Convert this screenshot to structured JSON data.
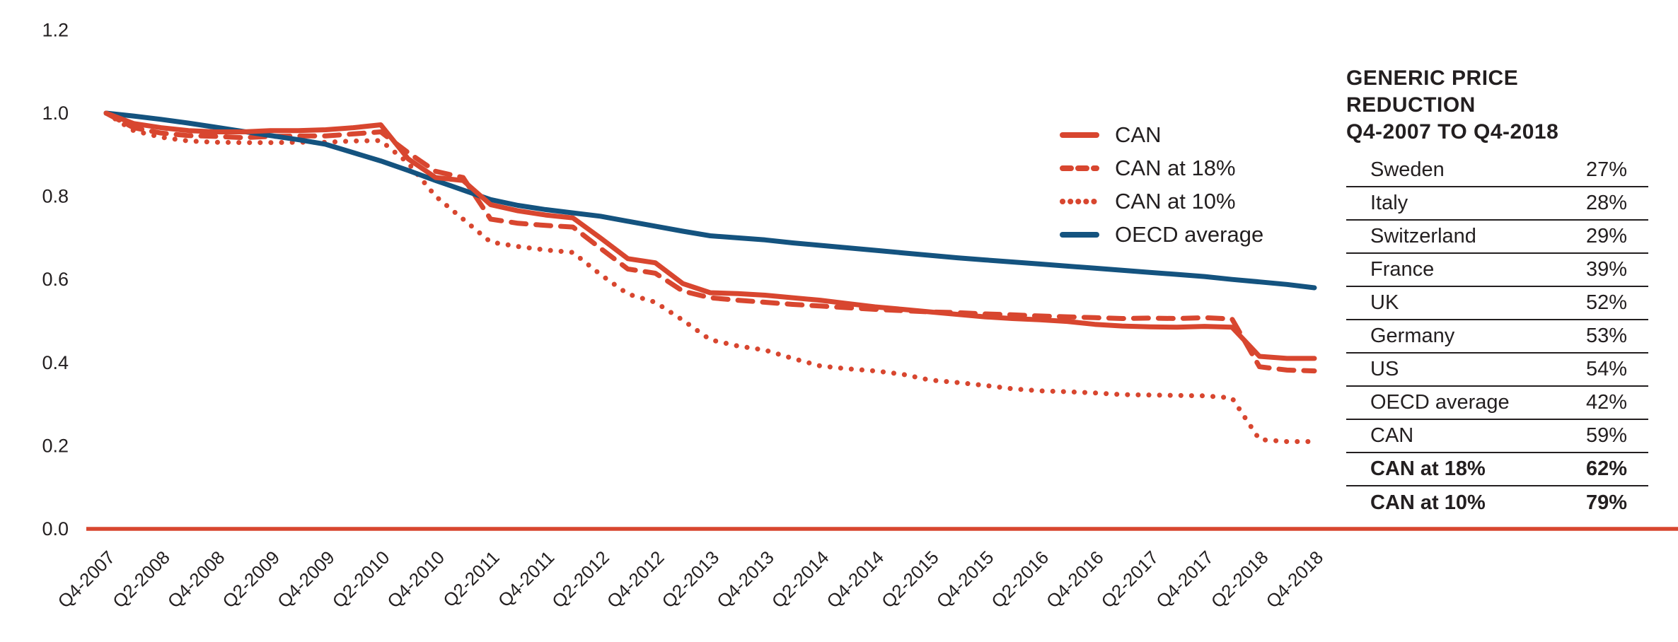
{
  "chart_data": {
    "type": "line",
    "title": "",
    "xlabel": "",
    "ylabel": "",
    "ylim": [
      0.0,
      1.2
    ],
    "grid": false,
    "legend_position": "right-inside",
    "y_tick_labels": [
      "0.0",
      "0.2",
      "0.4",
      "0.6",
      "0.8",
      "1.0",
      "1.2"
    ],
    "x_tick_labels": [
      "Q4-2007",
      "Q2-2008",
      "Q4-2008",
      "Q2-2009",
      "Q4-2009",
      "Q2-2010",
      "Q4-2010",
      "Q2-2011",
      "Q4-2011",
      "Q2-2012",
      "Q4-2012",
      "Q2-2013",
      "Q4-2013",
      "Q2-2014",
      "Q4-2014",
      "Q2-2015",
      "Q4-2015",
      "Q2-2016",
      "Q4-2016",
      "Q2-2017",
      "Q4-2017",
      "Q2-2018",
      "Q4-2018"
    ],
    "x_resolution": "quarterly, one point per quarter, labels every 2 quarters",
    "series": [
      {
        "name": "CAN",
        "style": "solid",
        "color": "#d8462f",
        "values": [
          1.0,
          0.975,
          0.965,
          0.958,
          0.955,
          0.955,
          0.958,
          0.958,
          0.96,
          0.965,
          0.972,
          0.89,
          0.845,
          0.838,
          0.78,
          0.765,
          0.755,
          0.748,
          0.7,
          0.65,
          0.64,
          0.59,
          0.568,
          0.566,
          0.562,
          0.556,
          0.55,
          0.542,
          0.534,
          0.528,
          0.522,
          0.516,
          0.51,
          0.506,
          0.503,
          0.499,
          0.492,
          0.488,
          0.486,
          0.485,
          0.487,
          0.485,
          0.415,
          0.41,
          0.41
        ]
      },
      {
        "name": "CAN at 18%",
        "style": "dashed",
        "color": "#d8462f",
        "values": [
          1.0,
          0.965,
          0.952,
          0.946,
          0.944,
          0.941,
          0.944,
          0.945,
          0.945,
          0.95,
          0.955,
          0.905,
          0.86,
          0.845,
          0.745,
          0.735,
          0.73,
          0.726,
          0.675,
          0.625,
          0.615,
          0.572,
          0.556,
          0.55,
          0.545,
          0.54,
          0.536,
          0.532,
          0.528,
          0.525,
          0.522,
          0.52,
          0.517,
          0.515,
          0.512,
          0.51,
          0.508,
          0.506,
          0.507,
          0.506,
          0.508,
          0.505,
          0.39,
          0.382,
          0.38
        ]
      },
      {
        "name": "CAN at 10%",
        "style": "dotted",
        "color": "#d8462f",
        "values": [
          1.0,
          0.958,
          0.942,
          0.933,
          0.93,
          0.929,
          0.929,
          0.93,
          0.93,
          0.933,
          0.934,
          0.88,
          0.8,
          0.745,
          0.69,
          0.679,
          0.671,
          0.665,
          0.612,
          0.565,
          0.545,
          0.502,
          0.455,
          0.44,
          0.43,
          0.41,
          0.392,
          0.385,
          0.38,
          0.372,
          0.358,
          0.352,
          0.345,
          0.337,
          0.332,
          0.33,
          0.327,
          0.323,
          0.322,
          0.321,
          0.32,
          0.315,
          0.215,
          0.21,
          0.21
        ]
      },
      {
        "name": "OECD average",
        "style": "solid",
        "color": "#14537f",
        "values": [
          1.0,
          0.993,
          0.985,
          0.976,
          0.966,
          0.956,
          0.946,
          0.936,
          0.925,
          0.905,
          0.885,
          0.862,
          0.838,
          0.815,
          0.792,
          0.778,
          0.768,
          0.76,
          0.752,
          0.74,
          0.728,
          0.716,
          0.705,
          0.7,
          0.695,
          0.688,
          0.682,
          0.676,
          0.67,
          0.664,
          0.658,
          0.652,
          0.647,
          0.642,
          0.637,
          0.632,
          0.627,
          0.622,
          0.617,
          0.612,
          0.607,
          0.6,
          0.594,
          0.588,
          0.58
        ]
      }
    ],
    "baseline": {
      "value": 0.0,
      "color": "#d8462f"
    }
  },
  "legend": {
    "items": [
      {
        "label": "CAN",
        "style": "solid",
        "color": "#d8462f"
      },
      {
        "label": "CAN at 18%",
        "style": "dashed",
        "color": "#d8462f"
      },
      {
        "label": "CAN at 10%",
        "style": "dotted",
        "color": "#d8462f"
      },
      {
        "label": "OECD average",
        "style": "solid",
        "color": "#14537f"
      }
    ]
  },
  "side_table": {
    "title_lines": [
      "GENERIC PRICE",
      "REDUCTION",
      "Q4-2007 TO Q4-2018"
    ],
    "rows": [
      {
        "label": "Sweden",
        "value": "27%",
        "bold": false
      },
      {
        "label": "Italy",
        "value": "28%",
        "bold": false
      },
      {
        "label": "Switzerland",
        "value": "29%",
        "bold": false
      },
      {
        "label": "France",
        "value": "39%",
        "bold": false
      },
      {
        "label": "UK",
        "value": "52%",
        "bold": false
      },
      {
        "label": "Germany",
        "value": "53%",
        "bold": false
      },
      {
        "label": "US",
        "value": "54%",
        "bold": false
      },
      {
        "label": "OECD average",
        "value": "42%",
        "bold": false
      },
      {
        "label": "CAN",
        "value": "59%",
        "bold": false
      },
      {
        "label": "CAN at 18%",
        "value": "62%",
        "bold": true
      },
      {
        "label": "CAN at 10%",
        "value": "79%",
        "bold": true
      }
    ]
  },
  "colors": {
    "accent_red": "#d8462f",
    "accent_blue": "#14537f",
    "text": "#231f20",
    "background": "#ffffff"
  }
}
